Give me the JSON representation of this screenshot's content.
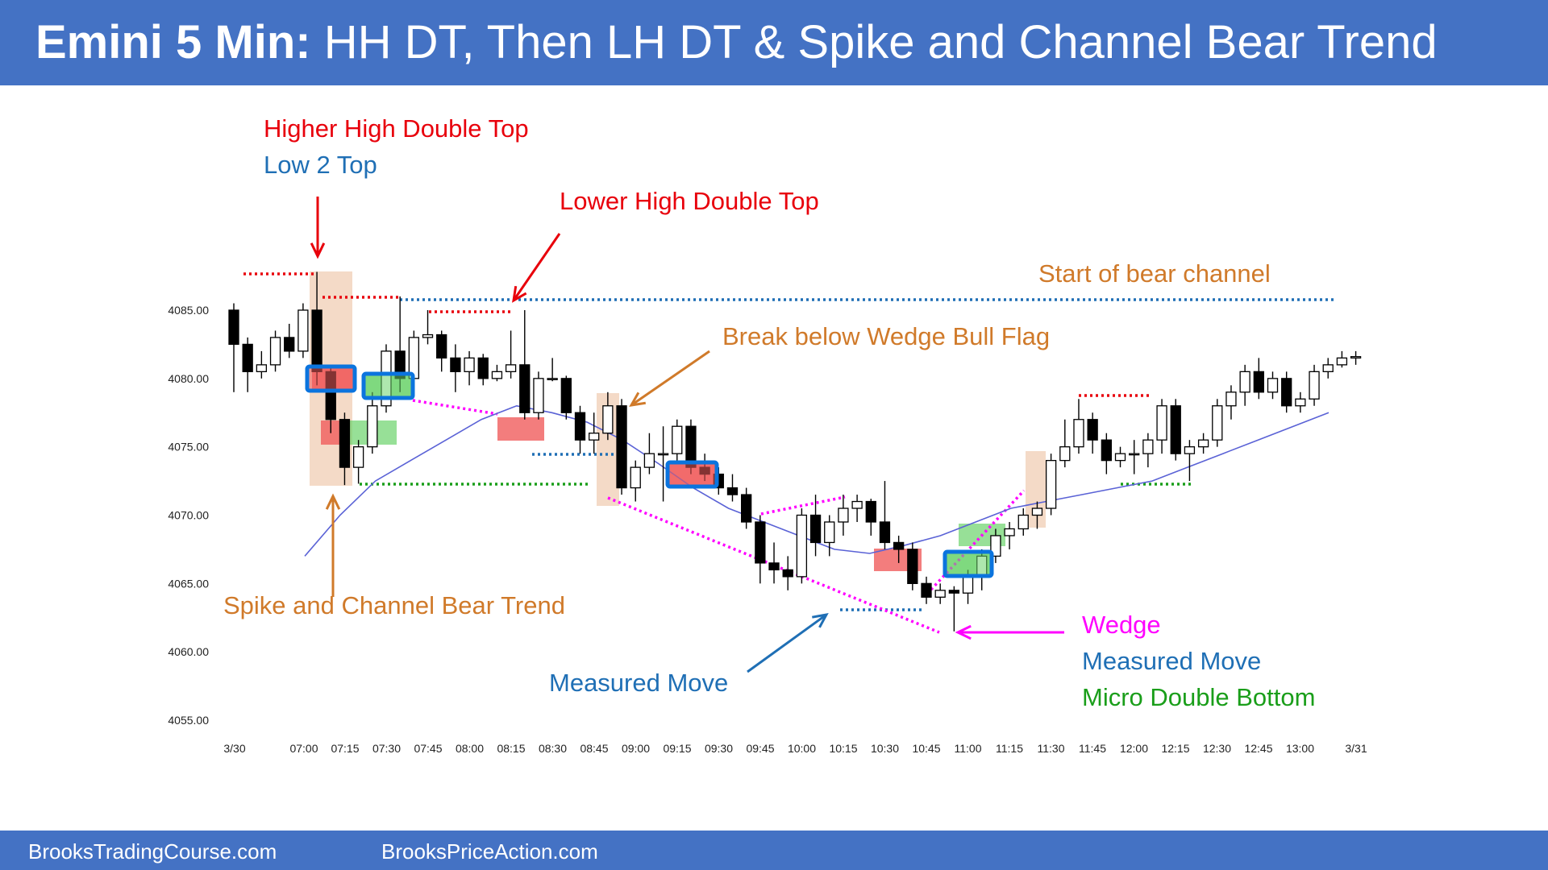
{
  "header": {
    "title_bold": "Emini 5 Min:",
    "title_rest": "HH DT, Then LH DT & Spike and Channel Bear Trend"
  },
  "footer": {
    "left_link": "BrooksTradingCourse.com",
    "right_link": "BrooksPriceAction.com"
  },
  "colors": {
    "banner": "#4472c4",
    "red": "#e8000b",
    "blue_text": "#1f6fb5",
    "orange": "#d07a2a",
    "magenta": "#ff00ff",
    "green": "#1a9e1a",
    "ema": "#5a62d6"
  },
  "chart_data": {
    "type": "candlestick",
    "ylim": [
      4052,
      4088
    ],
    "y_ticks": [
      "4085.00",
      "4080.00",
      "4075.00",
      "4070.00",
      "4065.00",
      "4060.00",
      "4055.00"
    ],
    "x_ticks": [
      "3/30",
      "07:00",
      "07:15",
      "07:30",
      "07:45",
      "08:00",
      "08:15",
      "08:30",
      "08:45",
      "09:00",
      "09:15",
      "09:30",
      "09:45",
      "10:00",
      "10:15",
      "10:30",
      "10:45",
      "11:00",
      "11:15",
      "11:30",
      "11:45",
      "12:00",
      "12:15",
      "12:30",
      "12:45",
      "13:00",
      "3/31"
    ],
    "bars": [
      {
        "o": 4085.0,
        "h": 4085.5,
        "l": 4079.0,
        "c": 4082.5
      },
      {
        "o": 4082.5,
        "h": 4083.0,
        "l": 4079.0,
        "c": 4080.5
      },
      {
        "o": 4080.5,
        "h": 4082.0,
        "l": 4080.0,
        "c": 4081.0
      },
      {
        "o": 4081.0,
        "h": 4083.5,
        "l": 4080.5,
        "c": 4083.0
      },
      {
        "o": 4083.0,
        "h": 4084.0,
        "l": 4081.5,
        "c": 4082.0
      },
      {
        "o": 4082.0,
        "h": 4085.5,
        "l": 4081.5,
        "c": 4085.0
      },
      {
        "o": 4085.0,
        "h": 4087.8,
        "l": 4079.5,
        "c": 4080.5
      },
      {
        "o": 4080.5,
        "h": 4081.0,
        "l": 4076.0,
        "c": 4077.0
      },
      {
        "o": 4077.0,
        "h": 4077.5,
        "l": 4072.2,
        "c": 4073.5
      },
      {
        "o": 4073.5,
        "h": 4075.5,
        "l": 4072.3,
        "c": 4075.0
      },
      {
        "o": 4075.0,
        "h": 4079.0,
        "l": 4074.5,
        "c": 4078.0
      },
      {
        "o": 4078.0,
        "h": 4082.5,
        "l": 4077.5,
        "c": 4082.0
      },
      {
        "o": 4082.0,
        "h": 4086.0,
        "l": 4079.0,
        "c": 4080.0
      },
      {
        "o": 4080.0,
        "h": 4083.5,
        "l": 4079.5,
        "c": 4083.0
      },
      {
        "o": 4083.0,
        "h": 4085.0,
        "l": 4082.5,
        "c": 4083.2
      },
      {
        "o": 4083.2,
        "h": 4083.5,
        "l": 4080.5,
        "c": 4081.5
      },
      {
        "o": 4081.5,
        "h": 4082.5,
        "l": 4079.0,
        "c": 4080.5
      },
      {
        "o": 4080.5,
        "h": 4082.0,
        "l": 4079.5,
        "c": 4081.5
      },
      {
        "o": 4081.5,
        "h": 4081.8,
        "l": 4079.5,
        "c": 4080.0
      },
      {
        "o": 4080.0,
        "h": 4081.0,
        "l": 4079.8,
        "c": 4080.5
      },
      {
        "o": 4080.5,
        "h": 4083.5,
        "l": 4080.0,
        "c": 4081.0
      },
      {
        "o": 4081.0,
        "h": 4085.0,
        "l": 4077.0,
        "c": 4077.5
      },
      {
        "o": 4077.5,
        "h": 4080.5,
        "l": 4077.0,
        "c": 4080.0
      },
      {
        "o": 4080.0,
        "h": 4081.5,
        "l": 4079.8,
        "c": 4080.0
      },
      {
        "o": 4080.0,
        "h": 4080.2,
        "l": 4077.0,
        "c": 4077.5
      },
      {
        "o": 4077.5,
        "h": 4078.0,
        "l": 4074.5,
        "c": 4075.5
      },
      {
        "o": 4075.5,
        "h": 4077.5,
        "l": 4074.5,
        "c": 4076.0
      },
      {
        "o": 4076.0,
        "h": 4079.0,
        "l": 4075.5,
        "c": 4078.0
      },
      {
        "o": 4078.0,
        "h": 4078.5,
        "l": 4071.5,
        "c": 4072.0
      },
      {
        "o": 4072.0,
        "h": 4074.0,
        "l": 4071.0,
        "c": 4073.5
      },
      {
        "o": 4073.5,
        "h": 4076.0,
        "l": 4073.0,
        "c": 4074.5
      },
      {
        "o": 4074.5,
        "h": 4076.5,
        "l": 4071.0,
        "c": 4074.5
      },
      {
        "o": 4074.5,
        "h": 4077.0,
        "l": 4074.0,
        "c": 4076.5
      },
      {
        "o": 4076.5,
        "h": 4077.0,
        "l": 4073.0,
        "c": 4073.5
      },
      {
        "o": 4073.5,
        "h": 4074.5,
        "l": 4072.5,
        "c": 4073.0
      },
      {
        "o": 4073.0,
        "h": 4073.5,
        "l": 4071.5,
        "c": 4072.0
      },
      {
        "o": 4072.0,
        "h": 4073.0,
        "l": 4071.0,
        "c": 4071.5
      },
      {
        "o": 4071.5,
        "h": 4072.0,
        "l": 4069.0,
        "c": 4069.5
      },
      {
        "o": 4069.5,
        "h": 4070.0,
        "l": 4065.0,
        "c": 4066.5
      },
      {
        "o": 4066.5,
        "h": 4068.0,
        "l": 4065.0,
        "c": 4066.0
      },
      {
        "o": 4066.0,
        "h": 4067.0,
        "l": 4064.5,
        "c": 4065.5
      },
      {
        "o": 4065.5,
        "h": 4070.5,
        "l": 4065.0,
        "c": 4070.0
      },
      {
        "o": 4070.0,
        "h": 4071.5,
        "l": 4067.0,
        "c": 4068.0
      },
      {
        "o": 4068.0,
        "h": 4070.0,
        "l": 4067.0,
        "c": 4069.5
      },
      {
        "o": 4069.5,
        "h": 4071.5,
        "l": 4068.5,
        "c": 4070.5
      },
      {
        "o": 4070.5,
        "h": 4071.5,
        "l": 4069.5,
        "c": 4071.0
      },
      {
        "o": 4071.0,
        "h": 4071.2,
        "l": 4068.5,
        "c": 4069.5
      },
      {
        "o": 4069.5,
        "h": 4072.5,
        "l": 4067.5,
        "c": 4068.0
      },
      {
        "o": 4068.0,
        "h": 4068.5,
        "l": 4066.5,
        "c": 4067.5
      },
      {
        "o": 4067.5,
        "h": 4068.0,
        "l": 4064.5,
        "c": 4065.0
      },
      {
        "o": 4065.0,
        "h": 4065.5,
        "l": 4063.5,
        "c": 4064.0
      },
      {
        "o": 4064.0,
        "h": 4065.0,
        "l": 4063.5,
        "c": 4064.5
      },
      {
        "o": 4064.5,
        "h": 4064.8,
        "l": 4061.5,
        "c": 4064.3
      },
      {
        "o": 4064.3,
        "h": 4066.0,
        "l": 4063.5,
        "c": 4065.5
      },
      {
        "o": 4065.5,
        "h": 4067.5,
        "l": 4064.5,
        "c": 4067.0
      },
      {
        "o": 4067.0,
        "h": 4069.0,
        "l": 4066.5,
        "c": 4068.5
      },
      {
        "o": 4068.5,
        "h": 4069.5,
        "l": 4067.5,
        "c": 4069.0
      },
      {
        "o": 4069.0,
        "h": 4070.5,
        "l": 4068.5,
        "c": 4070.0
      },
      {
        "o": 4070.0,
        "h": 4071.0,
        "l": 4069.0,
        "c": 4070.5
      },
      {
        "o": 4070.5,
        "h": 4074.5,
        "l": 4070.0,
        "c": 4074.0
      },
      {
        "o": 4074.0,
        "h": 4077.0,
        "l": 4073.5,
        "c": 4075.0
      },
      {
        "o": 4075.0,
        "h": 4078.5,
        "l": 4074.5,
        "c": 4077.0
      },
      {
        "o": 4077.0,
        "h": 4077.5,
        "l": 4074.5,
        "c": 4075.5
      },
      {
        "o": 4075.5,
        "h": 4076.0,
        "l": 4073.0,
        "c": 4074.0
      },
      {
        "o": 4074.0,
        "h": 4075.0,
        "l": 4073.5,
        "c": 4074.5
      },
      {
        "o": 4074.5,
        "h": 4075.5,
        "l": 4073.0,
        "c": 4074.5
      },
      {
        "o": 4074.5,
        "h": 4076.0,
        "l": 4073.5,
        "c": 4075.5
      },
      {
        "o": 4075.5,
        "h": 4078.5,
        "l": 4074.5,
        "c": 4078.0
      },
      {
        "o": 4078.0,
        "h": 4078.5,
        "l": 4074.0,
        "c": 4074.5
      },
      {
        "o": 4074.5,
        "h": 4075.5,
        "l": 4072.5,
        "c": 4075.0
      },
      {
        "o": 4075.0,
        "h": 4076.0,
        "l": 4074.5,
        "c": 4075.5
      },
      {
        "o": 4075.5,
        "h": 4078.5,
        "l": 4075.0,
        "c": 4078.0
      },
      {
        "o": 4078.0,
        "h": 4079.5,
        "l": 4077.0,
        "c": 4079.0
      },
      {
        "o": 4079.0,
        "h": 4081.0,
        "l": 4078.0,
        "c": 4080.5
      },
      {
        "o": 4080.5,
        "h": 4081.5,
        "l": 4078.5,
        "c": 4079.0
      },
      {
        "o": 4079.0,
        "h": 4080.5,
        "l": 4078.5,
        "c": 4080.0
      },
      {
        "o": 4080.0,
        "h": 4080.5,
        "l": 4077.5,
        "c": 4078.0
      },
      {
        "o": 4078.0,
        "h": 4079.0,
        "l": 4077.5,
        "c": 4078.5
      },
      {
        "o": 4078.5,
        "h": 4081.0,
        "l": 4078.0,
        "c": 4080.5
      },
      {
        "o": 4080.5,
        "h": 4081.5,
        "l": 4080.0,
        "c": 4081.0
      },
      {
        "o": 4081.0,
        "h": 4082.0,
        "l": 4080.8,
        "c": 4081.5
      },
      {
        "o": 4081.5,
        "h": 4082.0,
        "l": 4081.0,
        "c": 4081.6
      }
    ],
    "ema": [
      4067,
      4070,
      4072.5,
      4074,
      4075.5,
      4077,
      4078,
      4077.5,
      4076.8,
      4075.5,
      4073.8,
      4072,
      4070.5,
      4069.5,
      4068.5,
      4067.5,
      4067.2,
      4067.8,
      4068.5,
      4069.5,
      4070.5,
      4071,
      4071.5,
      4072,
      4072.5,
      4073.5,
      4074.5,
      4075.5,
      4076.5,
      4077.5
    ],
    "annotations": [
      {
        "text": "Higher High Double Top",
        "color": "#e8000b"
      },
      {
        "text": "Low 2 Top",
        "color": "#1f6fb5"
      },
      {
        "text": "Lower High Double Top",
        "color": "#e8000b"
      },
      {
        "text": "Start of bear channel",
        "color": "#d07a2a"
      },
      {
        "text": "Break below Wedge Bull Flag",
        "color": "#d07a2a"
      },
      {
        "text": "Spike and Channel Bear Trend",
        "color": "#d07a2a"
      },
      {
        "text": "Measured Move",
        "color": "#1f6fb5"
      },
      {
        "text": "Wedge",
        "color": "#ff00ff"
      },
      {
        "text": "Measured Move",
        "color": "#1f6fb5"
      },
      {
        "text": "Micro Double Bottom",
        "color": "#1a9e1a"
      }
    ]
  }
}
